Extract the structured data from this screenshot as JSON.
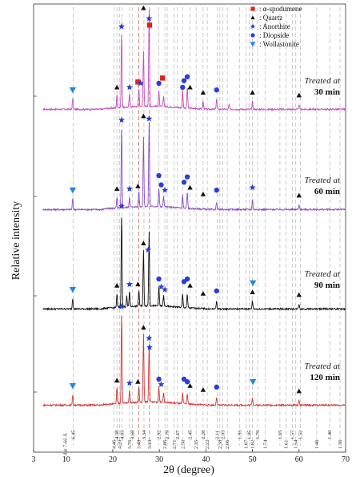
{
  "chart_data": {
    "type": "line",
    "title": "",
    "xlabel": "2θ (degree)",
    "ylabel": "Relative intensity",
    "xlim": [
      3,
      70
    ],
    "x_ticks": [
      "3",
      "10",
      "20",
      "30",
      "40",
      "50",
      "60",
      "70"
    ],
    "x_tick_values": [
      3,
      10,
      20,
      30,
      40,
      50,
      60,
      70
    ],
    "grid": false,
    "legend_position": "top-right",
    "legend": [
      {
        "label": ": α-spodumene",
        "marker": "square",
        "color": "#e02020"
      },
      {
        "label": ": Quartz",
        "marker": "triangle",
        "color": "#111111"
      },
      {
        "label": ": Anorthite",
        "marker": "star",
        "color": "#2a3fd6"
      },
      {
        "label": ": Diopside",
        "marker": "circle",
        "color": "#2a3fd6"
      },
      {
        "label": ": Wollastonite",
        "marker": "triangle-down",
        "color": "#1e88e5"
      }
    ],
    "d_spacing_first_label": "d = 7.66 Å",
    "d_spacing_lines": [
      {
        "two_theta": 11.5,
        "d": "6.45"
      },
      {
        "two_theta": 20.3,
        "d": "4.46"
      },
      {
        "two_theta": 20.9,
        "d": "4.38"
      },
      {
        "two_theta": 21.5,
        "d": "4.20"
      },
      {
        "two_theta": 22.0,
        "d": "4.03"
      },
      {
        "two_theta": 23.6,
        "d": "3.76"
      },
      {
        "two_theta": 24.2,
        "d": "3.68"
      },
      {
        "two_theta": 25.6,
        "d": "3.48"
      },
      {
        "two_theta": 26.7,
        "d": "3.34"
      },
      {
        "two_theta": 27.9,
        "d": "3.19"
      },
      {
        "two_theta": 29.9,
        "d": "2.92"
      },
      {
        "two_theta": 31.2,
        "d": "2.86"
      },
      {
        "two_theta": 31.7,
        "d": "2.79"
      },
      {
        "two_theta": 33.2,
        "d": "2.71"
      },
      {
        "two_theta": 33.9,
        "d": "2.67"
      },
      {
        "two_theta": 35.0,
        "d": "2.56"
      },
      {
        "two_theta": 36.6,
        "d": "2.45"
      },
      {
        "two_theta": 37.9,
        "d": "2.35"
      },
      {
        "two_theta": 39.4,
        "d": "2.28"
      },
      {
        "two_theta": 40.3,
        "d": "2.22"
      },
      {
        "two_theta": 42.4,
        "d": "2.11"
      },
      {
        "two_theta": 43.0,
        "d": "2.38"
      },
      {
        "two_theta": 43.6,
        "d": "2.03"
      },
      {
        "two_theta": 44.6,
        "d": "2.06"
      },
      {
        "two_theta": 47.2,
        "d": "1.93"
      },
      {
        "two_theta": 48.6,
        "d": "1.87"
      },
      {
        "two_theta": 49.3,
        "d": "1.85"
      },
      {
        "two_theta": 50.0,
        "d": "1.82"
      },
      {
        "two_theta": 51.1,
        "d": "1.79"
      },
      {
        "two_theta": 52.7,
        "d": "1.74"
      },
      {
        "two_theta": 55.9,
        "d": "1.65"
      },
      {
        "two_theta": 57.2,
        "d": "1.61"
      },
      {
        "two_theta": 58.6,
        "d": "1.57"
      },
      {
        "two_theta": 59.3,
        "d": "1.54"
      },
      {
        "two_theta": 60.3,
        "d": "1.52"
      },
      {
        "two_theta": 63.8,
        "d": "1.46"
      },
      {
        "two_theta": 66.6,
        "d": "1.40"
      },
      {
        "two_theta": 68.8,
        "d": "1.36"
      }
    ],
    "red_reference_lines": [
      25.6,
      27.9
    ],
    "series": [
      {
        "name": "Treated at 30 min",
        "label_prefix": "Treated at",
        "label_time": "30 min",
        "color": "#c44fbf",
        "peaks": [
          [
            11.4,
            0.4
          ],
          [
            20.9,
            0.5
          ],
          [
            21.9,
            2.8
          ],
          [
            23.6,
            0.5
          ],
          [
            25.6,
            0.7
          ],
          [
            26.6,
            2.1
          ],
          [
            27.8,
            3.6
          ],
          [
            29.9,
            0.6
          ],
          [
            30.9,
            0.4
          ],
          [
            35.0,
            0.7
          ],
          [
            36.0,
            0.8
          ],
          [
            39.4,
            0.3
          ],
          [
            42.3,
            0.4
          ],
          [
            45.0,
            0.2
          ],
          [
            50.0,
            0.3
          ],
          [
            60.0,
            0.2
          ]
        ],
        "markers": [
          {
            "type": "wollastonite",
            "x": 11.4,
            "y": 0.6
          },
          {
            "type": "quartz",
            "x": 20.9,
            "y": 0.7
          },
          {
            "type": "anorthite",
            "x": 21.9,
            "y": 3.0
          },
          {
            "type": "anorthite",
            "x": 23.6,
            "y": 0.7
          },
          {
            "type": "spodumene",
            "x": 25.4,
            "y": 0.9
          },
          {
            "type": "anorthite",
            "x": 26.0,
            "y": 0.85
          },
          {
            "type": "quartz",
            "x": 26.6,
            "y": 3.7
          },
          {
            "type": "anorthite",
            "x": 27.8,
            "y": 3.3
          },
          {
            "type": "spodumene",
            "x": 27.9,
            "y": 3.05
          },
          {
            "type": "diopside",
            "x": 29.9,
            "y": 0.85
          },
          {
            "type": "spodumene",
            "x": 30.7,
            "y": 1.05
          },
          {
            "type": "diopside",
            "x": 35.3,
            "y": 0.95
          },
          {
            "type": "diopside",
            "x": 36.0,
            "y": 1.1
          },
          {
            "type": "diopside",
            "x": 35.0,
            "y": 0.7
          },
          {
            "type": "quartz",
            "x": 36.6,
            "y": 0.7
          },
          {
            "type": "quartz",
            "x": 39.4,
            "y": 0.5
          },
          {
            "type": "diopside",
            "x": 42.3,
            "y": 0.6
          },
          {
            "type": "quartz",
            "x": 50.0,
            "y": 0.5
          },
          {
            "type": "quartz",
            "x": 60.0,
            "y": 0.4
          }
        ]
      },
      {
        "name": "Treated at 60 min",
        "label_prefix": "Treated at",
        "label_time": "60 min",
        "color": "#8a4fc4",
        "peaks": [
          [
            11.4,
            0.4
          ],
          [
            20.9,
            0.4
          ],
          [
            21.9,
            3.0
          ],
          [
            23.6,
            0.4
          ],
          [
            25.6,
            0.6
          ],
          [
            26.6,
            2.6
          ],
          [
            27.8,
            3.2
          ],
          [
            29.9,
            0.7
          ],
          [
            30.9,
            0.4
          ],
          [
            35.0,
            0.5
          ],
          [
            36.0,
            0.6
          ],
          [
            42.3,
            0.3
          ],
          [
            50.0,
            0.4
          ],
          [
            60.0,
            0.2
          ]
        ],
        "markers": [
          {
            "type": "wollastonite",
            "x": 11.4,
            "y": 0.6
          },
          {
            "type": "quartz",
            "x": 20.9,
            "y": 0.65
          },
          {
            "type": "anorthite",
            "x": 21.9,
            "y": 3.25
          },
          {
            "type": "anorthite",
            "x": 23.6,
            "y": 0.65
          },
          {
            "type": "quartz",
            "x": 25.4,
            "y": 0.75
          },
          {
            "type": "quartz",
            "x": 26.6,
            "y": 3.4
          },
          {
            "type": "anorthite",
            "x": 27.8,
            "y": 3.3
          },
          {
            "type": "diopside",
            "x": 29.9,
            "y": 1.15
          },
          {
            "type": "diopside",
            "x": 30.4,
            "y": 0.8
          },
          {
            "type": "anorthite",
            "x": 31.2,
            "y": 0.6
          },
          {
            "type": "diopside",
            "x": 35.3,
            "y": 0.9
          },
          {
            "type": "diopside",
            "x": 36.0,
            "y": 1.1
          },
          {
            "type": "quartz",
            "x": 36.6,
            "y": 0.7
          },
          {
            "type": "quartz",
            "x": 39.4,
            "y": 0.45
          },
          {
            "type": "diopside",
            "x": 42.3,
            "y": 0.6
          },
          {
            "type": "anorthite",
            "x": 50.0,
            "y": 0.7
          },
          {
            "type": "quartz",
            "x": 60.0,
            "y": 0.4
          }
        ]
      },
      {
        "name": "Treated at 90 min",
        "label_prefix": "Treated at",
        "label_time": "90 min",
        "color": "#111111",
        "peaks": [
          [
            11.4,
            0.4
          ],
          [
            20.9,
            0.5
          ],
          [
            21.9,
            3.5
          ],
          [
            23.0,
            0.4
          ],
          [
            23.6,
            0.6
          ],
          [
            25.6,
            0.6
          ],
          [
            26.6,
            2.1
          ],
          [
            27.8,
            2.8
          ],
          [
            29.9,
            0.7
          ],
          [
            30.9,
            0.4
          ],
          [
            35.0,
            0.5
          ],
          [
            36.0,
            0.5
          ],
          [
            42.3,
            0.3
          ],
          [
            50.0,
            0.3
          ],
          [
            60.0,
            0.2
          ]
        ],
        "markers": [
          {
            "type": "wollastonite",
            "x": 11.4,
            "y": 0.6
          },
          {
            "type": "quartz",
            "x": 20.9,
            "y": 0.75
          },
          {
            "type": "anorthite",
            "x": 21.9,
            "y": 3.75
          },
          {
            "type": "anorthite",
            "x": 23.6,
            "y": 0.8
          },
          {
            "type": "quartz",
            "x": 25.4,
            "y": 0.8
          },
          {
            "type": "quartz",
            "x": 26.6,
            "y": 2.35
          },
          {
            "type": "anorthite",
            "x": 27.6,
            "y": 2.1
          },
          {
            "type": "diopside",
            "x": 29.9,
            "y": 1.0
          },
          {
            "type": "anorthite",
            "x": 30.4,
            "y": 0.7
          },
          {
            "type": "anorthite",
            "x": 31.2,
            "y": 0.6
          },
          {
            "type": "diopside",
            "x": 35.3,
            "y": 0.9
          },
          {
            "type": "diopside",
            "x": 36.0,
            "y": 1.0
          },
          {
            "type": "quartz",
            "x": 36.6,
            "y": 0.75
          },
          {
            "type": "quartz",
            "x": 39.4,
            "y": 0.45
          },
          {
            "type": "diopside",
            "x": 42.3,
            "y": 0.55
          },
          {
            "type": "wollastonite",
            "x": 50.1,
            "y": 0.85
          },
          {
            "type": "quartz",
            "x": 50.0,
            "y": 0.5
          },
          {
            "type": "quartz",
            "x": 60.0,
            "y": 0.4
          }
        ]
      },
      {
        "name": "Treated at 120 min",
        "label_prefix": "Treated at",
        "label_time": "120 min",
        "color": "#d03a3a",
        "peaks": [
          [
            11.4,
            0.4
          ],
          [
            20.9,
            0.6
          ],
          [
            21.9,
            3.4
          ],
          [
            23.6,
            0.5
          ],
          [
            25.6,
            0.6
          ],
          [
            26.6,
            2.6
          ],
          [
            27.8,
            2.2
          ],
          [
            29.9,
            0.6
          ],
          [
            30.9,
            0.4
          ],
          [
            35.0,
            0.4
          ],
          [
            36.0,
            0.4
          ],
          [
            42.3,
            0.3
          ],
          [
            50.0,
            0.3
          ],
          [
            60.0,
            0.2
          ]
        ],
        "markers": [
          {
            "type": "wollastonite",
            "x": 11.4,
            "y": 0.6
          },
          {
            "type": "quartz",
            "x": 20.9,
            "y": 0.8
          },
          {
            "type": "anorthite",
            "x": 21.9,
            "y": 3.6
          },
          {
            "type": "anorthite",
            "x": 23.6,
            "y": 0.7
          },
          {
            "type": "quartz",
            "x": 25.4,
            "y": 0.75
          },
          {
            "type": "quartz",
            "x": 26.6,
            "y": 2.8
          },
          {
            "type": "anorthite",
            "x": 27.8,
            "y": 2.4
          },
          {
            "type": "anorthite",
            "x": 27.9,
            "y": 2.05
          },
          {
            "type": "diopside",
            "x": 29.9,
            "y": 0.85
          },
          {
            "type": "anorthite",
            "x": 30.4,
            "y": 0.65
          },
          {
            "type": "diopside",
            "x": 35.3,
            "y": 0.85
          },
          {
            "type": "diopside",
            "x": 36.0,
            "y": 0.75
          },
          {
            "type": "quartz",
            "x": 36.6,
            "y": 0.6
          },
          {
            "type": "quartz",
            "x": 39.4,
            "y": 0.45
          },
          {
            "type": "diopside",
            "x": 42.3,
            "y": 0.55
          },
          {
            "type": "wollastonite",
            "x": 50.1,
            "y": 0.75
          },
          {
            "type": "quartz",
            "x": 60.0,
            "y": 0.4
          }
        ]
      }
    ]
  }
}
